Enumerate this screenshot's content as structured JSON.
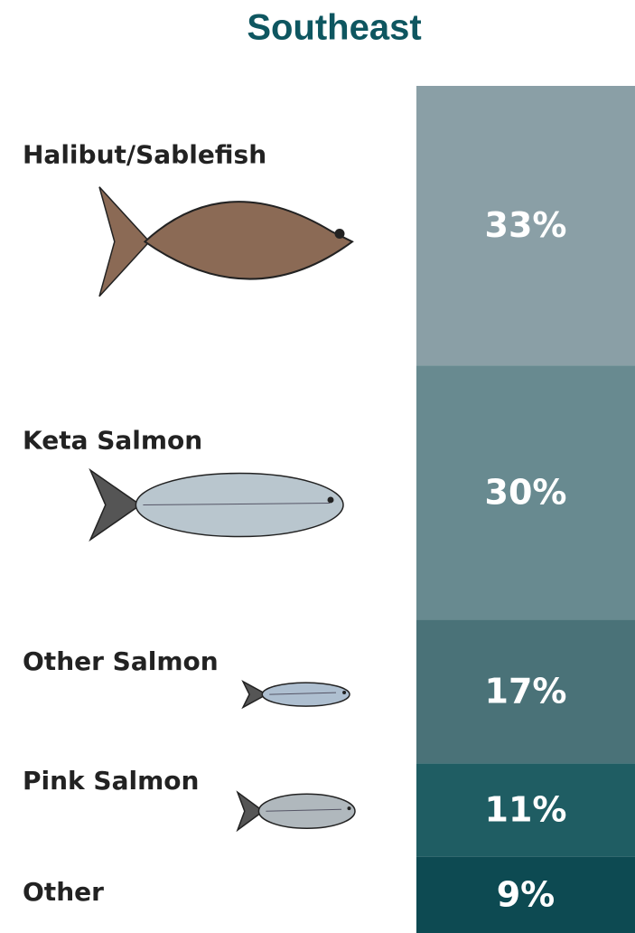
{
  "chart_data": {
    "type": "stacked-column",
    "title": "Southeast",
    "categories": [
      "Halibut/Sablefish",
      "Keta Salmon",
      "Other Salmon",
      "Pink Salmon",
      "Other"
    ],
    "values": [
      33,
      30,
      17,
      11,
      9
    ],
    "value_labels": [
      "33%",
      "30%",
      "17%",
      "11%",
      "9%"
    ],
    "colors": [
      "#8a9fa6",
      "#688a90",
      "#4a7278",
      "#1f5d63",
      "#0d4a52"
    ]
  }
}
